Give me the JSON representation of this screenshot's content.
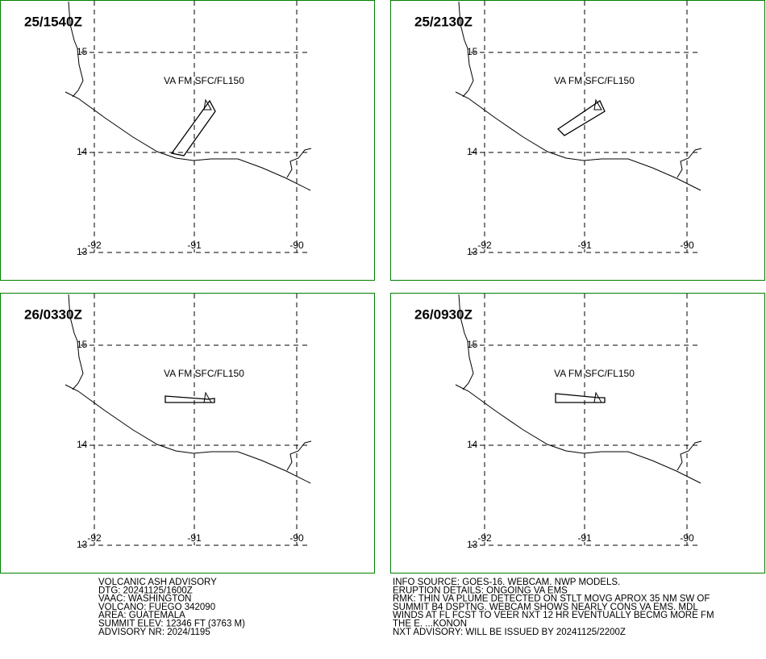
{
  "panels": [
    {
      "time": "25/1540Z",
      "layer": "VA FM SFC/FL150"
    },
    {
      "time": "25/2130Z",
      "layer": "VA FM SFC/FL150"
    },
    {
      "time": "26/0330Z",
      "layer": "VA FM SFC/FL150"
    },
    {
      "time": "26/0930Z",
      "layer": "VA FM SFC/FL150"
    }
  ],
  "grid": {
    "lat": [
      "15",
      "14",
      "13"
    ],
    "lon": [
      "-92",
      "-91",
      "-90"
    ]
  },
  "advisory_left": [
    "VOLCANIC ASH ADVISORY",
    "DTG: 20241125/1600Z",
    "VAAC: WASHINGTON",
    "VOLCANO: FUEGO 342090",
    "AREA: GUATEMALA",
    "SUMMIT ELEV: 12346 FT (3763 M)",
    "ADVISORY NR: 2024/1195"
  ],
  "advisory_right": [
    "INFO SOURCE: GOES-16. WEBCAM. NWP MODELS.",
    "ERUPTION DETAILS: ONGOING VA EMS",
    "RMK: THIN VA PLUME DETECTED ON STLT MOVG APROX 35 NM SW OF",
    "SUMMIT B4 DSPTNG. WEBCAM SHOWS NEARLY CONS VA EMS. MDL",
    "WINDS AT FL FCST TO VEER NXT 12 HR EVENTUALLY BECMG MORE FM",
    "THE E. ...KONON",
    "NXT ADVISORY: WILL BE ISSUED BY 20241125/2200Z"
  ]
}
